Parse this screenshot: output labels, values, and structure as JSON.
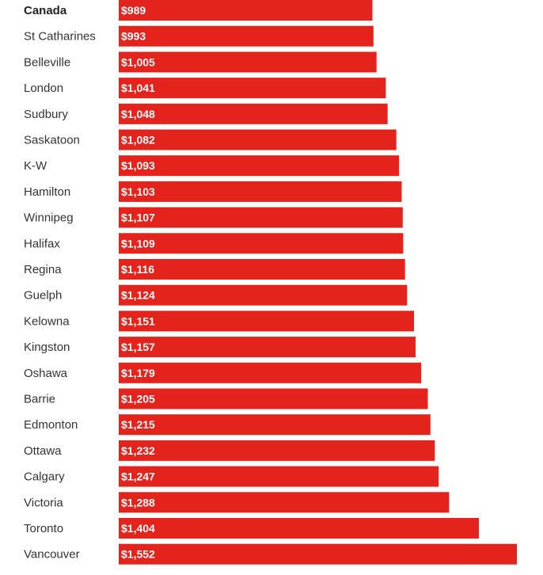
{
  "chart_data": {
    "type": "bar",
    "orientation": "horizontal",
    "bar_color": "#e3231c",
    "value_prefix": "$",
    "categories": [
      "Canada",
      "St Catharines",
      "Belleville",
      "London",
      "Sudbury",
      "Saskatoon",
      "K-W",
      "Hamilton",
      "Winnipeg",
      "Halifax",
      "Regina",
      "Guelph",
      "Kelowna",
      "Kingston",
      "Oshawa",
      "Barrie",
      "Edmonton",
      "Ottawa",
      "Calgary",
      "Victoria",
      "Toronto",
      "Vancouver"
    ],
    "values": [
      989,
      993,
      1005,
      1041,
      1048,
      1082,
      1093,
      1103,
      1107,
      1109,
      1116,
      1124,
      1151,
      1157,
      1179,
      1205,
      1215,
      1232,
      1247,
      1288,
      1404,
      1552
    ],
    "value_labels": [
      "$989",
      "$993",
      "$1,005",
      "$1,041",
      "$1,048",
      "$1,082",
      "$1,093",
      "$1,103",
      "$1,107",
      "$1,109",
      "$1,116",
      "$1,124",
      "$1,151",
      "$1,157",
      "$1,179",
      "$1,205",
      "$1,215",
      "$1,232",
      "$1,247",
      "$1,288",
      "$1,404",
      "$1,552"
    ],
    "highlighted_category": "Canada",
    "title": "",
    "xlabel": "",
    "ylabel": ""
  }
}
